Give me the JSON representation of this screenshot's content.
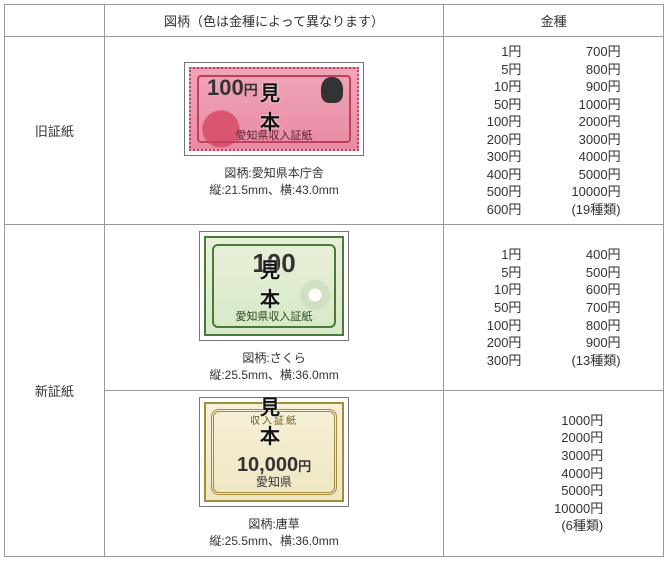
{
  "headers": {
    "design": "図柄（色は金種によって異なります）",
    "denom": "金種"
  },
  "rowLabels": {
    "old": "旧証紙",
    "new": "新証紙"
  },
  "mihon": "見　本",
  "stamps": {
    "old": {
      "value": "100",
      "yen": "円",
      "issuer": "愛知県収入証紙",
      "designLabel": "図柄:愛知県本庁舎",
      "sizeLabel": "縦:21.5mm、横:43.0mm"
    },
    "sakura": {
      "value": "100",
      "issuer": "愛知県収入証紙",
      "designLabel": "図柄:さくら",
      "sizeLabel": "縦:25.5mm、横:36.0mm"
    },
    "karakusa": {
      "topLabel": "収入証紙",
      "value": "10,000",
      "yen": "円",
      "issuer": "愛知県",
      "designLabel": "図柄:唐草",
      "sizeLabel": "縦:25.5mm、横:36.0mm"
    }
  },
  "denoms": {
    "old": {
      "col1": [
        "1円",
        "5円",
        "10円",
        "50円",
        "100円",
        "200円",
        "300円",
        "400円",
        "500円",
        "600円"
      ],
      "col2": [
        "700円",
        "800円",
        "900円",
        "1000円",
        "2000円",
        "3000円",
        "4000円",
        "5000円",
        "10000円",
        "(19種類)"
      ]
    },
    "sakura": {
      "col1": [
        "1円",
        "5円",
        "10円",
        "50円",
        "100円",
        "200円",
        "300円"
      ],
      "col2": [
        "400円",
        "500円",
        "600円",
        "700円",
        "800円",
        "900円",
        "(13種類)"
      ]
    },
    "karakusa": {
      "col1": [],
      "col2": [
        "1000円",
        "2000円",
        "3000円",
        "4000円",
        "5000円",
        "10000円",
        "(6種類)"
      ]
    }
  }
}
